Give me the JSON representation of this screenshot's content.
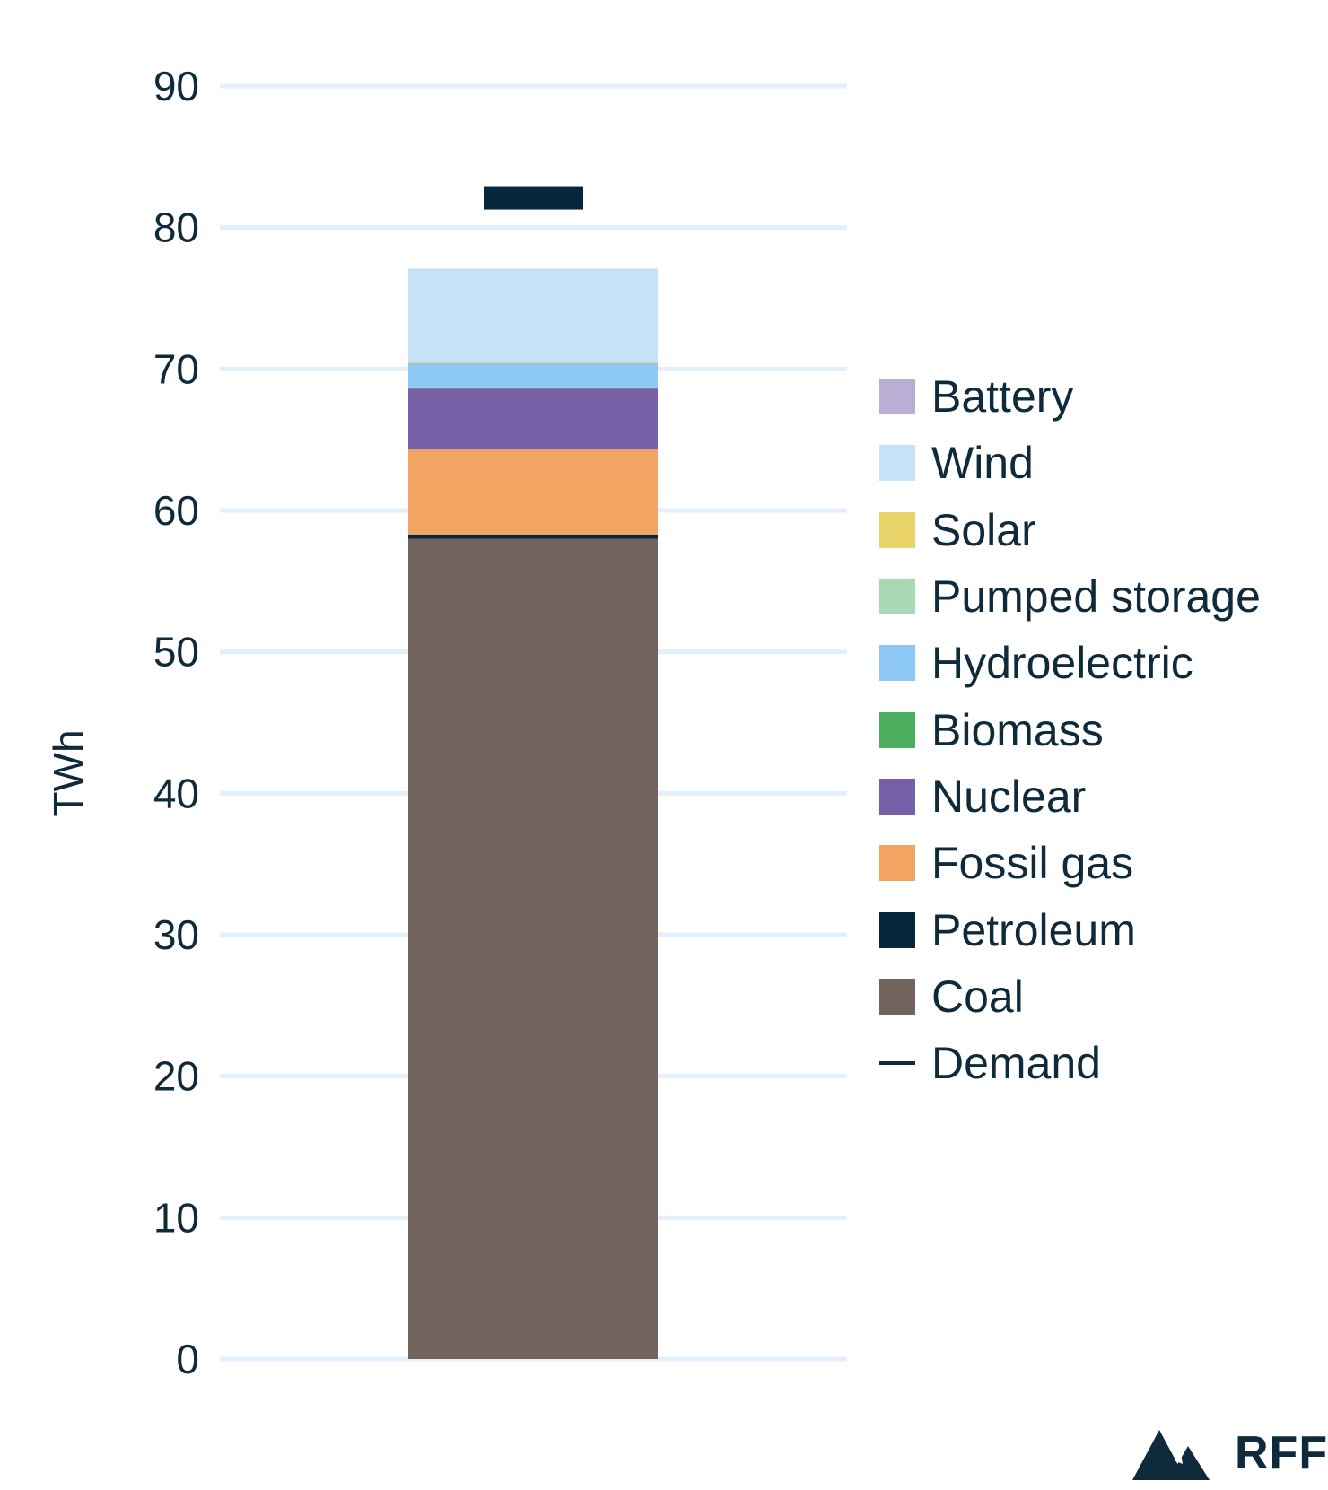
{
  "chart_data": {
    "type": "bar",
    "stacked": true,
    "title": "",
    "xlabel": "",
    "ylabel": "TWh",
    "ylim": [
      0,
      90
    ],
    "yticks": [
      "0",
      "10",
      "20",
      "30",
      "40",
      "50",
      "60",
      "70",
      "80",
      "90"
    ],
    "grid": true,
    "legend_position": "right",
    "categories": [
      ""
    ],
    "series": [
      {
        "name": "Coal",
        "color": "#72645c",
        "values": [
          58.0
        ]
      },
      {
        "name": "Petroleum",
        "color": "#04273c",
        "values": [
          0.3
        ]
      },
      {
        "name": "Fossil gas",
        "color": "#f2a462",
        "values": [
          6.0
        ]
      },
      {
        "name": "Nuclear",
        "color": "#7860a8",
        "values": [
          4.3
        ]
      },
      {
        "name": "Biomass",
        "color": "#4caf5f",
        "values": [
          0.1
        ]
      },
      {
        "name": "Hydroelectric",
        "color": "#8ec8f5",
        "values": [
          1.7
        ]
      },
      {
        "name": "Pumped storage",
        "color": "#a7dab4",
        "values": [
          0.0
        ]
      },
      {
        "name": "Solar",
        "color": "#ead46a",
        "values": [
          0.1
        ]
      },
      {
        "name": "Wind",
        "color": "#c6e2f7",
        "values": [
          6.6
        ]
      },
      {
        "name": "Battery",
        "color": "#bbaed4",
        "values": [
          0.0
        ]
      }
    ],
    "demand": {
      "name": "Demand",
      "color": "#04273c",
      "value": 82.1
    }
  },
  "legend_order": [
    "Battery",
    "Wind",
    "Solar",
    "Pumped storage",
    "Hydroelectric",
    "Biomass",
    "Nuclear",
    "Fossil gas",
    "Petroleum",
    "Coal",
    "Demand"
  ],
  "logo": {
    "text": "RFF"
  }
}
